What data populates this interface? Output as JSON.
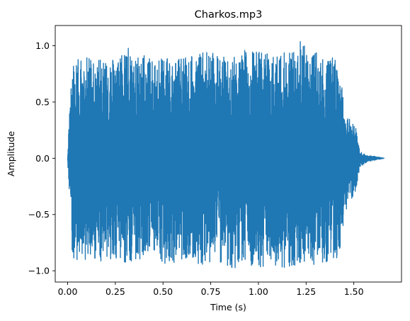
{
  "chart_data": {
    "type": "line",
    "title": "Charkos.mp3",
    "xlabel": "Time (s)",
    "ylabel": "Amplitude",
    "xlim": [
      -0.065,
      1.75
    ],
    "ylim": [
      -1.1,
      1.18
    ],
    "grid": false,
    "legend": "none",
    "color": "#1f77b4",
    "x_ticks": [
      0.0,
      0.25,
      0.5,
      0.75,
      1.0,
      1.25,
      1.5
    ],
    "x_tick_labels": [
      "0.00",
      "0.25",
      "0.50",
      "0.75",
      "1.00",
      "1.25",
      "1.50"
    ],
    "y_ticks": [
      -1.0,
      -0.5,
      0.0,
      0.5,
      1.0
    ],
    "y_tick_labels": [
      "−1.0",
      "−0.5",
      "0.0",
      "0.5",
      "1.0"
    ],
    "series": [
      {
        "x": [
          0.0,
          0.02,
          0.05,
          0.08,
          0.12,
          0.18,
          0.25,
          0.32,
          0.4,
          0.47,
          0.55,
          0.62,
          0.7,
          0.78,
          0.85,
          0.92,
          1.0,
          1.07,
          1.14,
          1.21,
          1.22,
          1.28,
          1.35,
          1.4,
          1.43,
          1.45,
          1.48,
          1.51,
          1.53,
          1.56,
          1.6,
          1.66
        ],
        "envelope_max": [
          0.0,
          0.88,
          0.9,
          0.87,
          0.92,
          0.9,
          0.88,
          0.99,
          0.92,
          0.9,
          0.93,
          0.91,
          0.95,
          0.93,
          0.9,
          0.96,
          0.95,
          0.93,
          0.97,
          0.93,
          1.08,
          0.95,
          0.93,
          0.9,
          0.9,
          0.4,
          0.35,
          0.27,
          0.08,
          0.03,
          0.02,
          0.0
        ],
        "envelope_min": [
          0.0,
          -0.88,
          -0.92,
          -0.9,
          -0.9,
          -0.94,
          -0.92,
          -0.93,
          -0.9,
          -0.94,
          -0.93,
          -0.91,
          -0.95,
          -0.93,
          -0.99,
          -0.95,
          -0.98,
          -0.94,
          -0.99,
          -0.97,
          -0.93,
          -0.95,
          -0.94,
          -0.9,
          -0.9,
          -0.55,
          -0.4,
          -0.3,
          -0.09,
          -0.04,
          -0.02,
          0.0
        ]
      }
    ]
  }
}
